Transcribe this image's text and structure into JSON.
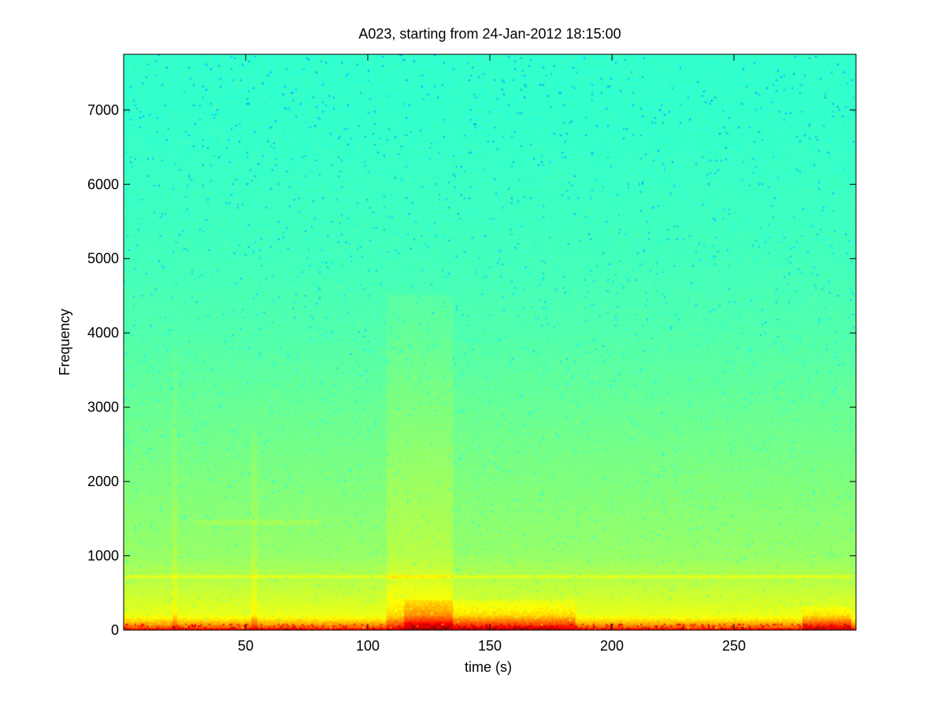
{
  "chart_data": {
    "type": "heatmap",
    "title": "A023, starting from 24-Jan-2012 18:15:00",
    "xlabel": "time (s)",
    "ylabel": "Frequency",
    "xlim": [
      0,
      300
    ],
    "ylim": [
      0,
      7750
    ],
    "xticks": [
      50,
      100,
      150,
      200,
      250
    ],
    "yticks": [
      0,
      1000,
      2000,
      3000,
      4000,
      5000,
      6000,
      7000
    ],
    "grid": false,
    "colormap": {
      "name": "jet",
      "stops": [
        "#00008f",
        "#0000ff",
        "#00ffff",
        "#7fff7f",
        "#ffff00",
        "#ff0000",
        "#7f0000"
      ]
    },
    "intensity_profile_by_frequency": {
      "frequency": [
        0,
        60,
        200,
        400,
        700,
        1000,
        2000,
        3000,
        4000,
        5000,
        6000,
        7000,
        7750
      ],
      "level": [
        0.84,
        0.74,
        0.64,
        0.61,
        0.57,
        0.53,
        0.5,
        0.47,
        0.44,
        0.42,
        0.41,
        0.4,
        0.4
      ]
    },
    "features": [
      {
        "kind": "broadband_band",
        "time_range": [
          108,
          135
        ],
        "frequency_max": 4500,
        "level_boost": 0.05
      },
      {
        "kind": "broadband_band",
        "time_range": [
          20,
          22
        ],
        "frequency_max": 3800,
        "level_boost": 0.04
      },
      {
        "kind": "broadband_band",
        "time_range": [
          52,
          55
        ],
        "frequency_max": 2700,
        "level_boost": 0.04
      },
      {
        "kind": "tonal_line",
        "frequency": 720,
        "time_range": [
          0,
          298
        ],
        "level_boost": 0.06
      },
      {
        "kind": "tonal_line",
        "frequency": 1450,
        "time_range": [
          30,
          80
        ],
        "level_boost": 0.03
      },
      {
        "kind": "low_frequency_energy",
        "time_range": [
          115,
          185
        ],
        "frequency_max": 400,
        "level_boost": 0.07
      },
      {
        "kind": "low_frequency_energy",
        "time_range": [
          278,
          298
        ],
        "frequency_max": 320,
        "level_boost": 0.07
      }
    ]
  }
}
